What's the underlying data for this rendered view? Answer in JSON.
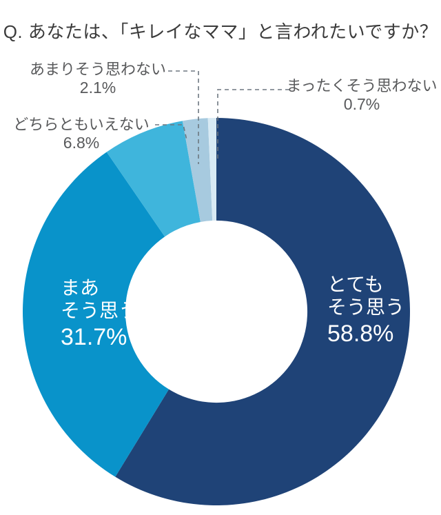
{
  "title": "Q. あなたは、「キレイなママ」と言われたいですか？",
  "colors": {
    "background": "#ffffff",
    "title_text": "#3b3b3b",
    "callout_text": "#58595b",
    "leader_line": "#6d7780",
    "inside_label_text": "#ffffff"
  },
  "chart_data": {
    "type": "pie",
    "subtype": "donut",
    "title": "Q. あなたは、「キレイなママ」と言われたいですか？",
    "direction": "clockwise",
    "start_angle_deg": 0,
    "inner_radius_ratio": 0.47,
    "unit": "%",
    "total": 100.1,
    "segments": [
      {
        "label": "とてもそう思う",
        "label_lines": [
          "とても",
          "そう思う"
        ],
        "value": 58.8,
        "display": "58.8%",
        "color": "#1F4377",
        "label_placement": "inside"
      },
      {
        "label": "まあそう思う",
        "label_lines": [
          "まあ",
          "そう思う"
        ],
        "value": 31.7,
        "display": "31.7%",
        "color": "#0993CA",
        "label_placement": "inside"
      },
      {
        "label": "どちらともいえない",
        "value": 6.8,
        "display": "6.8%",
        "color": "#3FB5DC",
        "label_placement": "outside"
      },
      {
        "label": "あまりそう思わない",
        "value": 2.1,
        "display": "2.1%",
        "color": "#A7CADF",
        "label_placement": "outside"
      },
      {
        "label": "まったくそう思わない",
        "value": 0.7,
        "display": "0.7%",
        "color": "#D8EAF4",
        "label_placement": "outside"
      }
    ]
  }
}
